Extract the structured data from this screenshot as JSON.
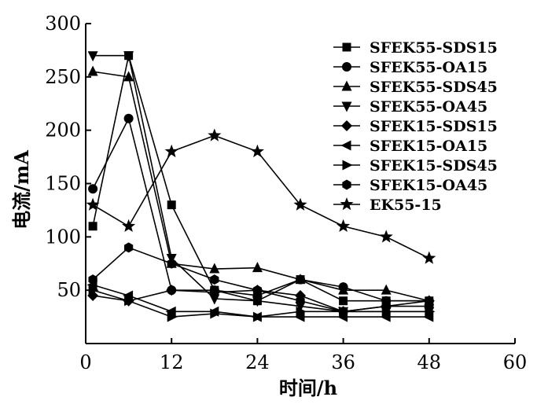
{
  "chart_data": {
    "type": "line",
    "title": "",
    "xlabel": "时间/h",
    "ylabel": "电流/mA",
    "xlim": [
      0,
      60
    ],
    "ylim": [
      0,
      300
    ],
    "x_ticks": [
      "0",
      "12",
      "24",
      "36",
      "48",
      "60"
    ],
    "y_ticks": [
      "50",
      "100",
      "150",
      "200",
      "250",
      "300"
    ],
    "legend_position": "top-right",
    "grid": false,
    "series": [
      {
        "name": "SFEK55-SDS15",
        "marker": "square",
        "x": [
          1,
          6,
          12,
          18,
          24,
          30,
          36,
          42,
          48
        ],
        "y": [
          110,
          270,
          130,
          50,
          40,
          60,
          40,
          40,
          40
        ]
      },
      {
        "name": "SFEK55-OA15",
        "marker": "circle",
        "x": [
          1,
          6,
          12,
          18,
          24,
          30,
          36,
          42,
          48
        ],
        "y": [
          145,
          211,
          50,
          50,
          45,
          60,
          53,
          40,
          40
        ]
      },
      {
        "name": "SFEK55-SDS45",
        "marker": "triangle-up",
        "x": [
          1,
          6,
          12,
          18,
          24,
          30,
          36,
          42,
          48
        ],
        "y": [
          255,
          250,
          75,
          70,
          71,
          60,
          50,
          50,
          40
        ]
      },
      {
        "name": "SFEK55-OA45",
        "marker": "triangle-down",
        "x": [
          1,
          6,
          12,
          18,
          24,
          30,
          36,
          42,
          48
        ],
        "y": [
          270,
          270,
          80,
          42,
          40,
          35,
          30,
          30,
          30
        ]
      },
      {
        "name": "SFEK15-SDS15",
        "marker": "diamond",
        "x": [
          1,
          6,
          12,
          18,
          24,
          30,
          36,
          42,
          48
        ],
        "y": [
          45,
          40,
          50,
          48,
          50,
          45,
          30,
          35,
          40
        ]
      },
      {
        "name": "SFEK15-OA15",
        "marker": "triangle-left",
        "x": [
          1,
          6,
          12,
          18,
          24,
          30,
          36,
          42,
          48
        ],
        "y": [
          55,
          45,
          30,
          30,
          25,
          25,
          25,
          25,
          25
        ]
      },
      {
        "name": "SFEK15-SDS45",
        "marker": "triangle-right",
        "x": [
          1,
          6,
          12,
          18,
          24,
          30,
          36,
          42,
          48
        ],
        "y": [
          50,
          40,
          25,
          28,
          25,
          30,
          30,
          30,
          30
        ]
      },
      {
        "name": "SFEK15-OA45",
        "marker": "hexagon",
        "x": [
          1,
          6,
          12,
          18,
          24,
          30,
          36,
          42,
          48
        ],
        "y": [
          60,
          90,
          75,
          60,
          50,
          40,
          30,
          35,
          35
        ]
      },
      {
        "name": "EK55-15",
        "marker": "star",
        "x": [
          1,
          6,
          12,
          18,
          24,
          30,
          36,
          42,
          48
        ],
        "y": [
          130,
          110,
          180,
          195,
          180,
          130,
          110,
          100,
          80
        ]
      }
    ]
  }
}
